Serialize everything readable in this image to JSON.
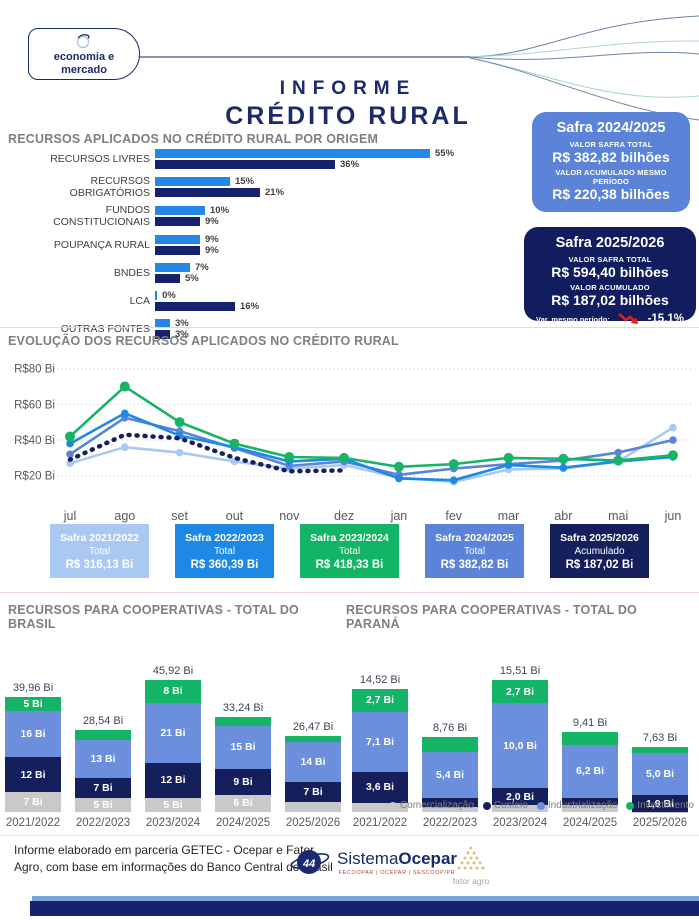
{
  "header": {
    "badge_line1": "economia e",
    "badge_line2": "mercado",
    "title_line1": "INFORME",
    "title_line2": "CRÉDITO RURAL"
  },
  "safra_cards": {
    "current": {
      "title": "Safra 2024/2025",
      "label1": "VALOR SAFRA TOTAL",
      "value1": "R$ 382,82 bilhões",
      "label2": "VALOR ACUMULADO MESMO PERÍODO",
      "value2": "R$ 220,38 bilhões"
    },
    "next": {
      "title": "Safra 2025/2026",
      "label1": "VALOR SAFRA TOTAL",
      "value1": "R$ 594,40 bilhões",
      "label2": "VALOR ACUMULADO",
      "value2": "R$ 187,02 bilhões",
      "var_label": "Var. mesmo período:",
      "var_value": "-15,1%",
      "var_color": "#e01f1f"
    }
  },
  "chart_data": [
    {
      "id": "origem",
      "type": "bar",
      "orientation": "horizontal",
      "title": "RECURSOS APLICADOS NO CRÉDITO RURAL POR ORIGEM",
      "categories": [
        "RECURSOS LIVRES",
        "RECURSOS OBRIGATÓRIOS",
        "FUNDOS CONSTITUCIONAIS",
        "POUPANÇA RURAL",
        "BNDES",
        "LCA",
        "OUTRAS FONTES"
      ],
      "series": [
        {
          "name": "Safra 2024/2025",
          "color": "#2287e8",
          "values": [
            55,
            15,
            10,
            9,
            7,
            0,
            3
          ]
        },
        {
          "name": "Safra 2025/2026",
          "color": "#16226b",
          "values": [
            36,
            21,
            9,
            9,
            5,
            16,
            3
          ]
        }
      ],
      "unit": "%",
      "xlim": [
        0,
        60
      ],
      "grid": false
    },
    {
      "id": "evolucao",
      "type": "line",
      "title": "EVOLUÇÃO DOS RECURSOS APLICADOS NO CRÉDITO RURAL",
      "x": [
        "jul",
        "ago",
        "set",
        "out",
        "nov",
        "dez",
        "jan",
        "fev",
        "mar",
        "abr",
        "mai",
        "jun"
      ],
      "ylim": [
        12,
        86
      ],
      "yticks": [
        {
          "label": "R$20 Bi",
          "value": 20
        },
        {
          "label": "R$40 Bi",
          "value": 40
        },
        {
          "label": "R$60 Bi",
          "value": 60
        },
        {
          "label": "R$80 Bi",
          "value": 80
        }
      ],
      "grid": "dotted-horizontal",
      "series": [
        {
          "name": "Safra 2021/2022",
          "color": "#a9c9f2",
          "style": "solid",
          "values": [
            27,
            36,
            33,
            28,
            24,
            26,
            19,
            16.5,
            23.5,
            24,
            28,
            47
          ]
        },
        {
          "name": "Safra 2024/2025",
          "color": "#5b83d8",
          "style": "solid",
          "values": [
            32,
            52.5,
            45,
            35.5,
            25.5,
            28,
            20.5,
            24,
            26.5,
            28.5,
            33,
            40
          ]
        },
        {
          "name": "Safra 2022/2023",
          "color": "#1e88e5",
          "style": "solid",
          "values": [
            38,
            55,
            42.5,
            36,
            28,
            29.5,
            18.5,
            17.5,
            26,
            24.5,
            28,
            30.5
          ]
        },
        {
          "name": "Safra 2023/2024",
          "color": "#17b368",
          "style": "solid",
          "values": [
            42,
            70,
            50,
            38,
            30.5,
            30,
            25,
            26.5,
            30,
            29.5,
            28.5,
            31.5
          ]
        },
        {
          "name": "Safra 2025/2026",
          "color": "#141f5c",
          "style": "dotted",
          "values": [
            29,
            43,
            41,
            30,
            22.5,
            23,
            null,
            null,
            null,
            null,
            null,
            null
          ]
        }
      ]
    },
    {
      "id": "coop_brasil",
      "type": "bar",
      "stacked": true,
      "title": "RECURSOS PARA COOPERATIVAS - TOTAL DO BRASIL",
      "unit": "Bi",
      "categories": [
        "2021/2022",
        "2022/2023",
        "2023/2024",
        "2024/2025",
        "2025/2026"
      ],
      "totals": [
        "39,96 Bi",
        "28,54 Bi",
        "45,92 Bi",
        "33,24 Bi",
        "26,47 Bi"
      ],
      "series": [
        {
          "name": "Comercialização",
          "color": "#c9c9c9",
          "values": [
            7,
            5,
            5,
            6,
            3.5
          ],
          "labels": [
            "7 Bi",
            "5 Bi",
            "5 Bi",
            "6 Bi",
            ""
          ]
        },
        {
          "name": "Custeio",
          "color": "#141f5c",
          "values": [
            12,
            7,
            12,
            9,
            7
          ],
          "labels": [
            "12 Bi",
            "7 Bi",
            "12 Bi",
            "9 Bi",
            "7 Bi"
          ]
        },
        {
          "name": "Industrialização",
          "color": "#6b8fdc",
          "values": [
            16,
            13,
            21,
            15,
            14
          ],
          "labels": [
            "16 Bi",
            "13 Bi",
            "21 Bi",
            "15 Bi",
            "14 Bi"
          ]
        },
        {
          "name": "Investimento",
          "color": "#13b465",
          "values": [
            5,
            3.5,
            8,
            3.2,
            2
          ],
          "labels": [
            "5 Bi",
            "",
            "8 Bi",
            "",
            ""
          ]
        }
      ]
    },
    {
      "id": "coop_parana",
      "type": "bar",
      "stacked": true,
      "title": "RECURSOS PARA COOPERATIVAS - TOTAL DO PARANÁ",
      "unit": "Bi",
      "categories": [
        "2021/2022",
        "2022/2023",
        "2023/2024",
        "2024/2025",
        "2025/2026"
      ],
      "totals": [
        "14,52 Bi",
        "8,76 Bi",
        "15,51 Bi",
        "9,41 Bi",
        "7,63 Bi"
      ],
      "series": [
        {
          "name": "Comercialização",
          "color": "#c9c9c9",
          "values": [
            1.1,
            0.6,
            0.8,
            0.8,
            0.05
          ],
          "labels": [
            "",
            "",
            "",
            "",
            ""
          ]
        },
        {
          "name": "Custeio",
          "color": "#141f5c",
          "values": [
            3.6,
            1.0,
            2.0,
            0.9,
            1.9
          ],
          "labels": [
            "3,6 Bi",
            "",
            "2,0 Bi",
            "",
            "1,9 Bi"
          ]
        },
        {
          "name": "Industrialização",
          "color": "#6b8fdc",
          "values": [
            7.1,
            5.4,
            10.0,
            6.2,
            5.0
          ],
          "labels": [
            "7,1 Bi",
            "5,4 Bi",
            "10,0 Bi",
            "6,2 Bi",
            "5,0 Bi"
          ]
        },
        {
          "name": "Investimento",
          "color": "#13b465",
          "values": [
            2.7,
            1.76,
            2.7,
            1.5,
            0.7
          ],
          "labels": [
            "2,7 Bi",
            "",
            "2,7 Bi",
            "",
            ""
          ]
        }
      ]
    }
  ],
  "evolution_cards": [
    {
      "title": "Safra 2021/2022",
      "label": "Total",
      "value": "R$ 316,13 Bi",
      "color": "#a9c9f2"
    },
    {
      "title": "Safra 2022/2023",
      "label": "Total",
      "value": "R$ 360,39 Bi",
      "color": "#1e88e5"
    },
    {
      "title": "Safra 2023/2024",
      "label": "Total",
      "value": "R$ 418,33 Bi",
      "color": "#13b465"
    },
    {
      "title": "Safra 2024/2025",
      "label": "Total",
      "value": "R$ 382,82 Bi",
      "color": "#5b83d8"
    },
    {
      "title": "Safra 2025/2026",
      "label": "Acumulado",
      "value": "R$ 187,02 Bi",
      "color": "#141f5c"
    }
  ],
  "legend": [
    {
      "label": "Comercialização",
      "color": "#c9c9c9"
    },
    {
      "label": "Custeio",
      "color": "#141f5c"
    },
    {
      "label": "Industrialização",
      "color": "#6b8fdc"
    },
    {
      "label": "Investimento",
      "color": "#13b465"
    }
  ],
  "footer": {
    "text": "Informe elaborado em parceria GETEC - Ocepar e Fator Agro, com base em informações do Banco Central do Brasil",
    "ocepar_regular": "Sistema",
    "ocepar_bold": "Ocepar",
    "ocepar_sub": "FECOOPAR | OCEPAR | SESCOOP/PR",
    "ocepar_badge": "44",
    "fatoragro": "fator agro"
  },
  "colors": {
    "navy": "#1a2a6c",
    "bright_blue": "#1e88e5",
    "medium_blue": "#5b83d8",
    "pale_blue": "#a9c9f2",
    "green": "#13b465",
    "gray": "#c9c9c9",
    "strip_light": "#7ba2d9",
    "strip_dark": "#16226b"
  }
}
